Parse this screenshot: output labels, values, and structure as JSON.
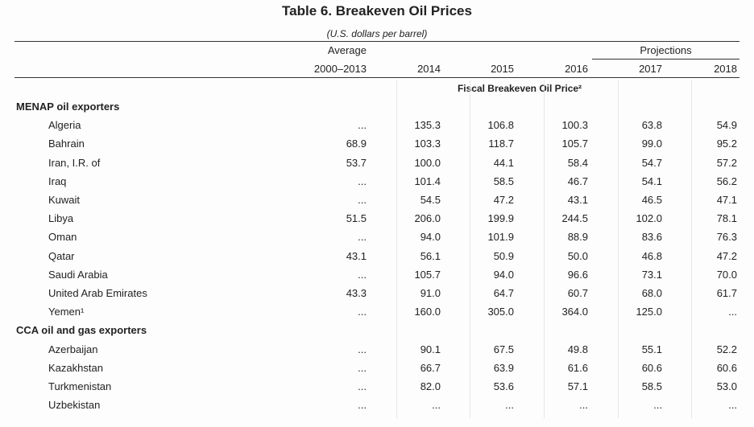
{
  "header": {
    "title": "Table 6. Breakeven Oil Prices",
    "subtitle": "(U.S. dollars per barrel)"
  },
  "table": {
    "group_headers": {
      "average": "Average",
      "projections": "Projections"
    },
    "columns": [
      "2000–2013",
      "2014",
      "2015",
      "2016",
      "2017",
      "2018"
    ],
    "measure": "Fiscal Breakeven Oil Price²",
    "sections": [
      {
        "title": "MENAP oil exporters",
        "rows": [
          {
            "name": "Algeria",
            "values": [
              "...",
              "135.3",
              "106.8",
              "100.3",
              "63.8",
              "54.9"
            ]
          },
          {
            "name": "Bahrain",
            "values": [
              "68.9",
              "103.3",
              "118.7",
              "105.7",
              "99.0",
              "95.2"
            ]
          },
          {
            "name": "Iran, I.R. of",
            "values": [
              "53.7",
              "100.0",
              "44.1",
              "58.4",
              "54.7",
              "57.2"
            ]
          },
          {
            "name": "Iraq",
            "values": [
              "...",
              "101.4",
              "58.5",
              "46.7",
              "54.1",
              "56.2"
            ]
          },
          {
            "name": "Kuwait",
            "values": [
              "...",
              "54.5",
              "47.2",
              "43.1",
              "46.5",
              "47.1"
            ]
          },
          {
            "name": "Libya",
            "values": [
              "51.5",
              "206.0",
              "199.9",
              "244.5",
              "102.0",
              "78.1"
            ]
          },
          {
            "name": "Oman",
            "values": [
              "...",
              "94.0",
              "101.9",
              "88.9",
              "83.6",
              "76.3"
            ]
          },
          {
            "name": "Qatar",
            "values": [
              "43.1",
              "56.1",
              "50.9",
              "50.0",
              "46.8",
              "47.2"
            ]
          },
          {
            "name": "Saudi Arabia",
            "values": [
              "...",
              "105.7",
              "94.0",
              "96.6",
              "73.1",
              "70.0"
            ]
          },
          {
            "name": "United Arab Emirates",
            "values": [
              "43.3",
              "91.0",
              "64.7",
              "60.7",
              "68.0",
              "61.7"
            ]
          },
          {
            "name": "Yemen¹",
            "values": [
              "...",
              "160.0",
              "305.0",
              "364.0",
              "125.0",
              "..."
            ]
          }
        ]
      },
      {
        "title": "CCA oil and gas exporters",
        "rows": [
          {
            "name": "Azerbaijan",
            "values": [
              "...",
              "90.1",
              "67.5",
              "49.8",
              "55.1",
              "52.2"
            ]
          },
          {
            "name": "Kazakhstan",
            "values": [
              "...",
              "66.7",
              "63.9",
              "61.6",
              "60.6",
              "60.6"
            ]
          },
          {
            "name": "Turkmenistan",
            "values": [
              "...",
              "82.0",
              "53.6",
              "57.1",
              "58.5",
              "53.0"
            ]
          },
          {
            "name": "Uzbekistan",
            "values": [
              "...",
              "...",
              "...",
              "...",
              "...",
              "..."
            ]
          }
        ]
      }
    ]
  }
}
